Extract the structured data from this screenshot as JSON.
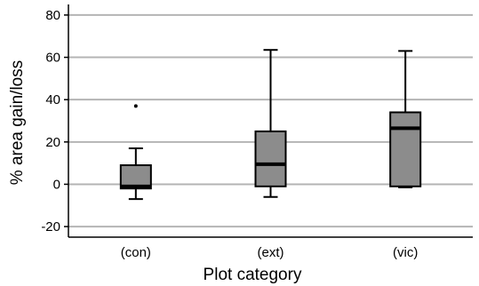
{
  "chart_data": {
    "type": "box",
    "title": "",
    "xlabel": "Plot category",
    "ylabel": "% area gain/loss",
    "ylim": [
      -25,
      85
    ],
    "yticks": [
      -20,
      0,
      20,
      40,
      60,
      80
    ],
    "grid": true,
    "categories": [
      "(con)",
      "(ext)",
      "(vic)"
    ],
    "boxes": [
      {
        "category": "(con)",
        "whisker_low": -7,
        "q1": -2,
        "median": -1,
        "q3": 9,
        "whisker_high": 17,
        "outliers": [
          37
        ]
      },
      {
        "category": "(ext)",
        "whisker_low": -6,
        "q1": -1,
        "median": 9.5,
        "q3": 25,
        "whisker_high": 63.5,
        "outliers": []
      },
      {
        "category": "(vic)",
        "whisker_low": -1.5,
        "q1": -1,
        "median": 26.5,
        "q3": 34,
        "whisker_high": 63,
        "outliers": []
      }
    ],
    "colors": {
      "box_fill": "#8c8c8c",
      "grid": "#b4b4b4",
      "line": "#000000"
    }
  }
}
